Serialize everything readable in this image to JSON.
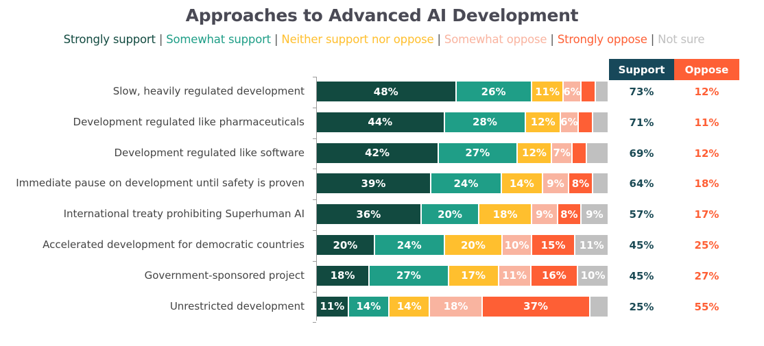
{
  "chart_data": {
    "type": "bar",
    "orientation": "horizontal",
    "stacked": true,
    "title": "Approaches to Advanced AI Development",
    "legend": [
      {
        "label": "Strongly support",
        "color": "#124a40"
      },
      {
        "label": "Somewhat support",
        "color": "#1f9e87"
      },
      {
        "label": "Neither support nor oppose",
        "color": "#ffbf2e"
      },
      {
        "label": "Somewhat oppose",
        "color": "#f9b4a0"
      },
      {
        "label": "Strongly oppose",
        "color": "#fe5f35"
      },
      {
        "label": "Not sure",
        "color": "#c0c0c0"
      }
    ],
    "legend_position": "top",
    "categories": [
      "Slow, heavily regulated development",
      "Development regulated like pharmaceuticals",
      "Development regulated like software",
      "Immediate pause on development until safety is proven",
      "International treaty prohibiting Superhuman AI",
      "Accelerated development for democratic countries",
      "Government-sponsored project",
      "Unrestricted development"
    ],
    "series": [
      {
        "name": "Strongly support",
        "values": [
          48,
          44,
          42,
          39,
          36,
          20,
          18,
          11
        ],
        "labels": [
          "48%",
          "44%",
          "42%",
          "39%",
          "36%",
          "20%",
          "18%",
          "11%"
        ]
      },
      {
        "name": "Somewhat support",
        "values": [
          26,
          28,
          27,
          24,
          20,
          24,
          27,
          14
        ],
        "labels": [
          "26%",
          "28%",
          "27%",
          "24%",
          "20%",
          "24%",
          "27%",
          "14%"
        ]
      },
      {
        "name": "Neither support nor oppose",
        "values": [
          11,
          12,
          12,
          14,
          18,
          20,
          17,
          14
        ],
        "labels": [
          "11%",
          "12%",
          "12%",
          "14%",
          "18%",
          "20%",
          "17%",
          "14%"
        ]
      },
      {
        "name": "Somewhat oppose",
        "values": [
          6,
          6,
          7,
          9,
          9,
          10,
          11,
          18
        ],
        "labels": [
          "6%",
          "6%",
          "7%",
          "9%",
          "9%",
          "10%",
          "11%",
          "18%"
        ]
      },
      {
        "name": "Strongly oppose",
        "values": [
          5,
          5,
          5,
          8,
          8,
          15,
          16,
          37
        ],
        "labels": [
          "",
          "",
          "",
          "8%",
          "8%",
          "15%",
          "16%",
          "37%"
        ]
      },
      {
        "name": "Not sure",
        "values": [
          4,
          5,
          7,
          5,
          9,
          11,
          10,
          6
        ],
        "labels": [
          "",
          "",
          "",
          "",
          "9%",
          "11%",
          "10%",
          ""
        ]
      }
    ],
    "xlim": [
      0,
      100
    ],
    "xlabel": "",
    "ylabel": "",
    "grid": false,
    "summary_table": {
      "headers": [
        "Support",
        "Oppose"
      ],
      "support": [
        "73%",
        "71%",
        "69%",
        "64%",
        "57%",
        "45%",
        "45%",
        "25%"
      ],
      "oppose": [
        "12%",
        "11%",
        "12%",
        "18%",
        "17%",
        "25%",
        "27%",
        "55%"
      ]
    }
  },
  "colors": {
    "support_header": "#17485a",
    "oppose_header": "#fe5f35",
    "support_text": "#1b4a55",
    "oppose_text": "#fe5f35",
    "separator": "#555555"
  },
  "legend_separator": " | "
}
